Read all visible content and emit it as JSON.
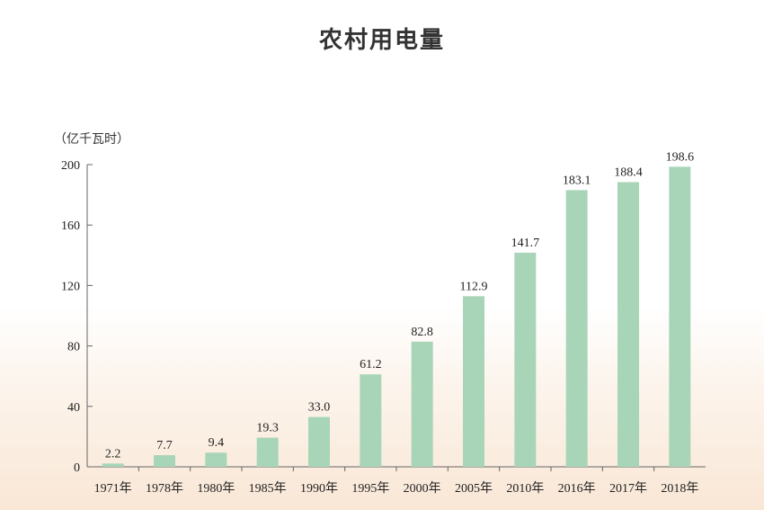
{
  "chart_data": {
    "type": "bar",
    "title": "农村用电量",
    "ylabel": "（亿千瓦时）",
    "xlabel": "",
    "categories": [
      "1971年",
      "1978年",
      "1980年",
      "1985年",
      "1990年",
      "1995年",
      "2000年",
      "2005年",
      "2010年",
      "2016年",
      "2017年",
      "2018年"
    ],
    "values": [
      2.2,
      7.7,
      9.4,
      19.3,
      33.0,
      61.2,
      82.8,
      112.9,
      141.7,
      183.1,
      188.4,
      198.6
    ],
    "value_labels": [
      "2.2",
      "7.7",
      "9.4",
      "19.3",
      "33.0",
      "61.2",
      "82.8",
      "112.9",
      "141.7",
      "183.1",
      "188.4",
      "198.6"
    ],
    "ylim": [
      0,
      200
    ],
    "yticks": [
      "0",
      "40",
      "80",
      "120",
      "160",
      "200"
    ],
    "grid": false,
    "bar_color": "#a8d5b8"
  }
}
